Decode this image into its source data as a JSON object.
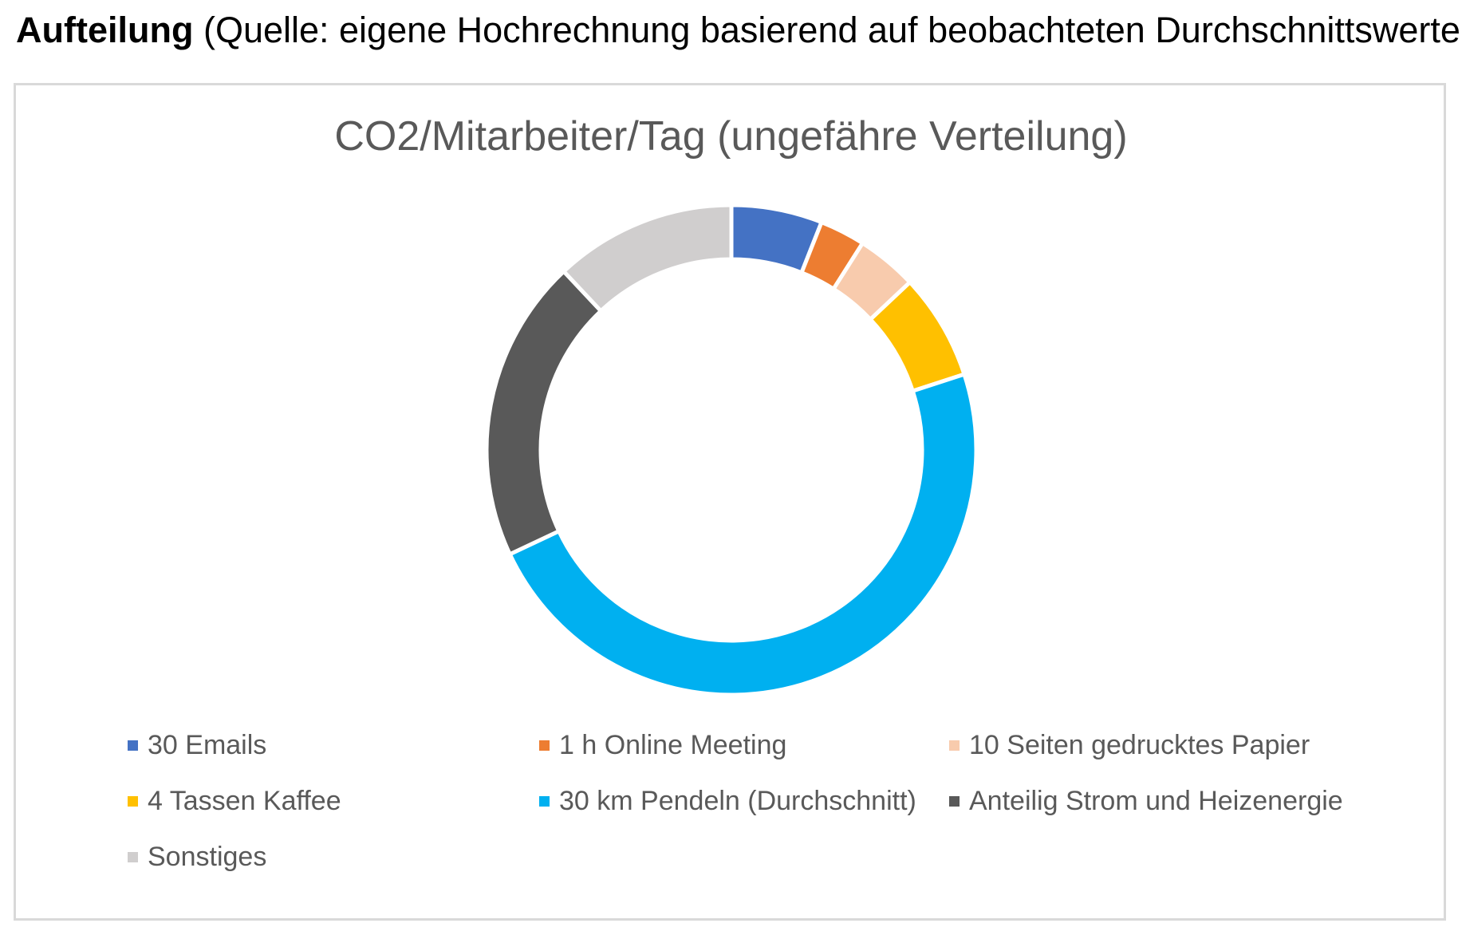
{
  "heading": {
    "bold": "Aufteilung",
    "rest": " (Quelle: eigene Hochrechnung basierend auf beobachteten Durchschnittswerten)"
  },
  "chart_data": {
    "type": "pie",
    "variant": "doughnut",
    "title": "CO2/Mitarbeiter/Tag (ungefähre Verteilung)",
    "legend_position": "bottom",
    "categories": [
      "30 Emails",
      "1 h Online Meeting",
      "10 Seiten gedrucktes Papier",
      "4 Tassen Kaffee",
      "30 km Pendeln (Durchschnitt)",
      "Anteilig Strom und Heizenergie",
      "Sonstiges"
    ],
    "values": [
      6,
      3,
      4,
      7,
      48,
      20,
      12
    ],
    "colors": [
      "#4472c4",
      "#ed7d31",
      "#f8cbad",
      "#ffc000",
      "#00b0f0",
      "#595959",
      "#d0cece"
    ]
  }
}
